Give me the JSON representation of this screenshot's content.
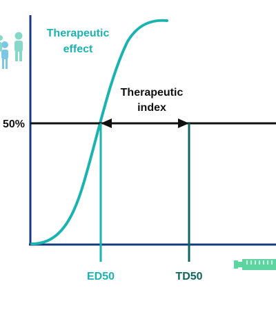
{
  "diagram": {
    "curve_label_line1": "Therapeutic",
    "curve_label_line2": "effect",
    "index_label_line1": "Therapeutic",
    "index_label_line2": "index",
    "y_tick_label": "50%",
    "ed50_label": "ED50",
    "td50_label": "TD50",
    "icons": {
      "top_left": "people-icon",
      "bottom_right": "syringe-icon"
    }
  },
  "colors": {
    "teal": "#1bb3b0",
    "dark_teal": "#0d6560",
    "navy": "#143b80",
    "black": "#111111",
    "light_teal": "#86d9c9",
    "light_blue": "#7cc6e6",
    "light_green": "#5cd6a0"
  }
}
